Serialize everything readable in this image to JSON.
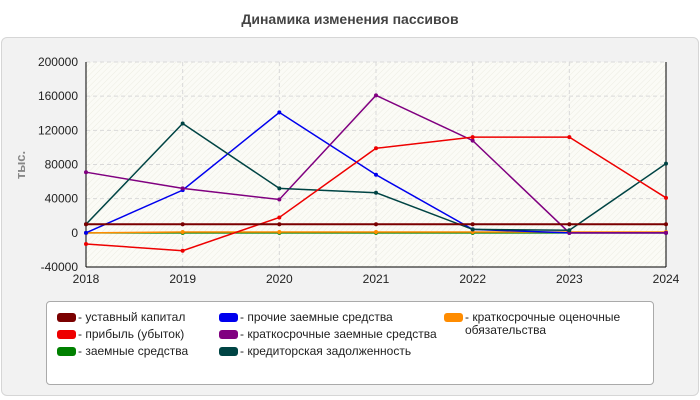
{
  "title": "Динамика изменения пассивов",
  "chart_data": {
    "type": "line",
    "title": "Динамика изменения пассивов",
    "ylabel": "тыс.",
    "xlabel": "",
    "categories": [
      "2018",
      "2019",
      "2020",
      "2021",
      "2022",
      "2023",
      "2024"
    ],
    "ylim": [
      -40000,
      200000
    ],
    "yticks": [
      -40000,
      0,
      40000,
      80000,
      120000,
      160000,
      200000
    ],
    "yticklabels": [
      "-40000",
      "0",
      "40000",
      "80000",
      "120000",
      "160000",
      "200000"
    ],
    "grid": true,
    "legend_position": "bottom",
    "series": [
      {
        "name": "уставный капитал",
        "color": "#7a0000",
        "values": [
          10000,
          10000,
          10000,
          10000,
          10000,
          10000,
          10000
        ]
      },
      {
        "name": "прибыль (убыток)",
        "color": "#ee0000",
        "values": [
          -13000,
          -21000,
          18000,
          99000,
          112000,
          112000,
          41000
        ]
      },
      {
        "name": "заемные средства",
        "color": "#008000",
        "values": [
          0,
          0,
          0,
          0,
          0,
          0,
          0
        ]
      },
      {
        "name": "прочие заемные средства",
        "color": "#0000ee",
        "values": [
          0,
          50000,
          141000,
          68000,
          4000,
          0,
          0
        ]
      },
      {
        "name": "краткосрочные заемные средства",
        "color": "#800080",
        "values": [
          71000,
          52000,
          39000,
          161000,
          108000,
          0,
          0
        ]
      },
      {
        "name": "кредиторская задолженность",
        "color": "#004444",
        "values": [
          10000,
          128000,
          52000,
          47000,
          4000,
          3000,
          81000
        ]
      },
      {
        "name": "краткосрочные оценочные обязательства",
        "color": "#ff8c00",
        "values": [
          0,
          1000,
          1000,
          1000,
          1000,
          1000,
          1000
        ]
      }
    ]
  },
  "legend": {
    "col1": [
      {
        "label": "- уставный капитал",
        "color": "#7a0000"
      },
      {
        "label": "- прибыль (убыток)",
        "color": "#ee0000"
      },
      {
        "label": "- заемные средства",
        "color": "#008000"
      }
    ],
    "col2": [
      {
        "label": "- прочие заемные средства",
        "color": "#0000ee"
      },
      {
        "label": "- краткосрочные заемные средства",
        "color": "#800080"
      },
      {
        "label": "- кредиторская задолженность",
        "color": "#004444"
      }
    ],
    "col3": [
      {
        "label": "- краткосрочные оценочные обязательства",
        "color": "#ff8c00"
      }
    ]
  }
}
